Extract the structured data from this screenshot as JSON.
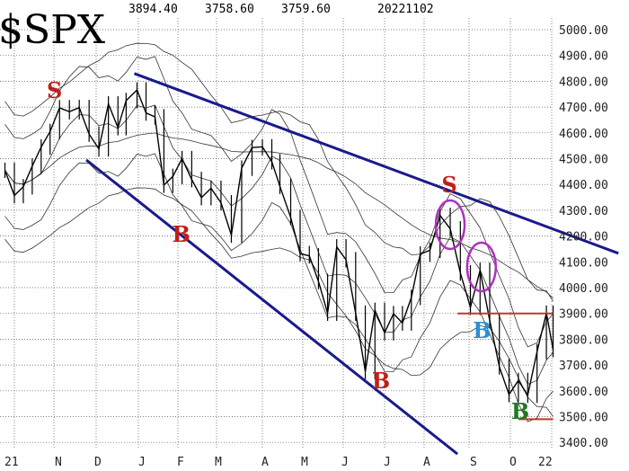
{
  "header": {
    "symbol": "$SPX",
    "high": "3894.40",
    "low": "3758.60",
    "close": "3759.60",
    "date": "20221102"
  },
  "chart_data": {
    "type": "line",
    "title": "$SPX",
    "ylim": [
      3400,
      5000
    ],
    "yticks": [
      "5000.00",
      "4900.00",
      "4800.00",
      "4700.00",
      "4600.00",
      "4500.00",
      "4400.00",
      "4300.00",
      "4200.00",
      "4100.00",
      "4000.00",
      "3900.00",
      "3800.00",
      "3700.00",
      "3600.00",
      "3500.00",
      "3400.00"
    ],
    "xticks": [
      "21",
      "N",
      "D",
      "J",
      "F",
      "M",
      "A",
      "M",
      "J",
      "J",
      "A",
      "S",
      "O",
      "22"
    ],
    "grid": true,
    "series": [
      {
        "x": [
          "2021-09-24",
          "2021-10-01",
          "2021-10-08",
          "2021-10-15",
          "2021-10-22",
          "2021-10-29",
          "2021-11-05",
          "2021-11-12",
          "2021-11-19",
          "2021-11-26",
          "2021-12-03",
          "2021-12-10",
          "2021-12-17",
          "2021-12-23",
          "2021-12-31",
          "2022-01-07",
          "2022-01-14",
          "2022-01-21",
          "2022-01-28",
          "2022-02-04",
          "2022-02-11",
          "2022-02-18",
          "2022-02-25",
          "2022-03-04",
          "2022-03-11",
          "2022-03-18",
          "2022-03-25",
          "2022-04-01",
          "2022-04-08",
          "2022-04-14",
          "2022-04-22",
          "2022-04-29",
          "2022-05-06",
          "2022-05-13",
          "2022-05-20",
          "2022-05-27",
          "2022-06-03",
          "2022-06-10",
          "2022-06-17",
          "2022-06-24",
          "2022-07-01",
          "2022-07-08",
          "2022-07-15",
          "2022-07-22",
          "2022-07-29",
          "2022-08-05",
          "2022-08-12",
          "2022-08-19",
          "2022-08-26",
          "2022-09-02",
          "2022-09-09",
          "2022-09-16",
          "2022-09-23",
          "2022-09-30",
          "2022-10-07",
          "2022-10-14",
          "2022-10-21",
          "2022-10-28",
          "2022-11-02"
        ],
        "y": [
          4455,
          4357,
          4391,
          4471,
          4545,
          4605,
          4697,
          4682,
          4698,
          4595,
          4538,
          4712,
          4620,
          4725,
          4766,
          4677,
          4662,
          4397,
          4431,
          4500,
          4419,
          4349,
          4385,
          4329,
          4204,
          4463,
          4543,
          4546,
          4488,
          4393,
          4272,
          4132,
          4123,
          4024,
          3901,
          4158,
          4108,
          3901,
          3675,
          3912,
          3825,
          3899,
          3863,
          3962,
          4130,
          4145,
          4280,
          4228,
          4057,
          3924,
          4067,
          3873,
          3693,
          3586,
          3640,
          3583,
          3752,
          3901,
          3760
        ]
      }
    ],
    "trendlines": [
      {
        "color": "#1a1a8c",
        "from": [
          "2021-12-29",
          4830
        ],
        "to": [
          "2022-12-20",
          4133
        ]
      },
      {
        "color": "#1a1a8c",
        "from": [
          "2021-11-24",
          4495
        ],
        "to": [
          "2022-08-24",
          3355
        ]
      },
      {
        "color": "#c0392b",
        "from": [
          "2022-08-24",
          3900
        ],
        "to": [
          "2022-11-02",
          3900
        ]
      },
      {
        "color": "#c0392b",
        "from": [
          "2022-10-07",
          3490
        ],
        "to": [
          "2022-11-02",
          3490
        ]
      }
    ],
    "annotations": [
      {
        "text": "S",
        "color": "#c0201a",
        "date": "2021-11-01",
        "price": 4767
      },
      {
        "text": "B",
        "color": "#c0201a",
        "date": "2022-02-02",
        "price": 4209
      },
      {
        "text": "B",
        "color": "#c0201a",
        "date": "2022-06-27",
        "price": 3641
      },
      {
        "text": "S",
        "color": "#c0201a",
        "date": "2022-08-18",
        "price": 4400
      },
      {
        "text": "B",
        "color": "#2a8fd6",
        "date": "2022-09-09",
        "price": 3836
      },
      {
        "text": "B",
        "color": "#1f7a1f",
        "date": "2022-10-07",
        "price": 3523
      }
    ],
    "ellipses": [
      {
        "color": "#b030c0",
        "date": "2022-08-19",
        "price": 4244
      },
      {
        "color": "#b030c0",
        "date": "2022-09-10",
        "price": 4080
      }
    ]
  }
}
